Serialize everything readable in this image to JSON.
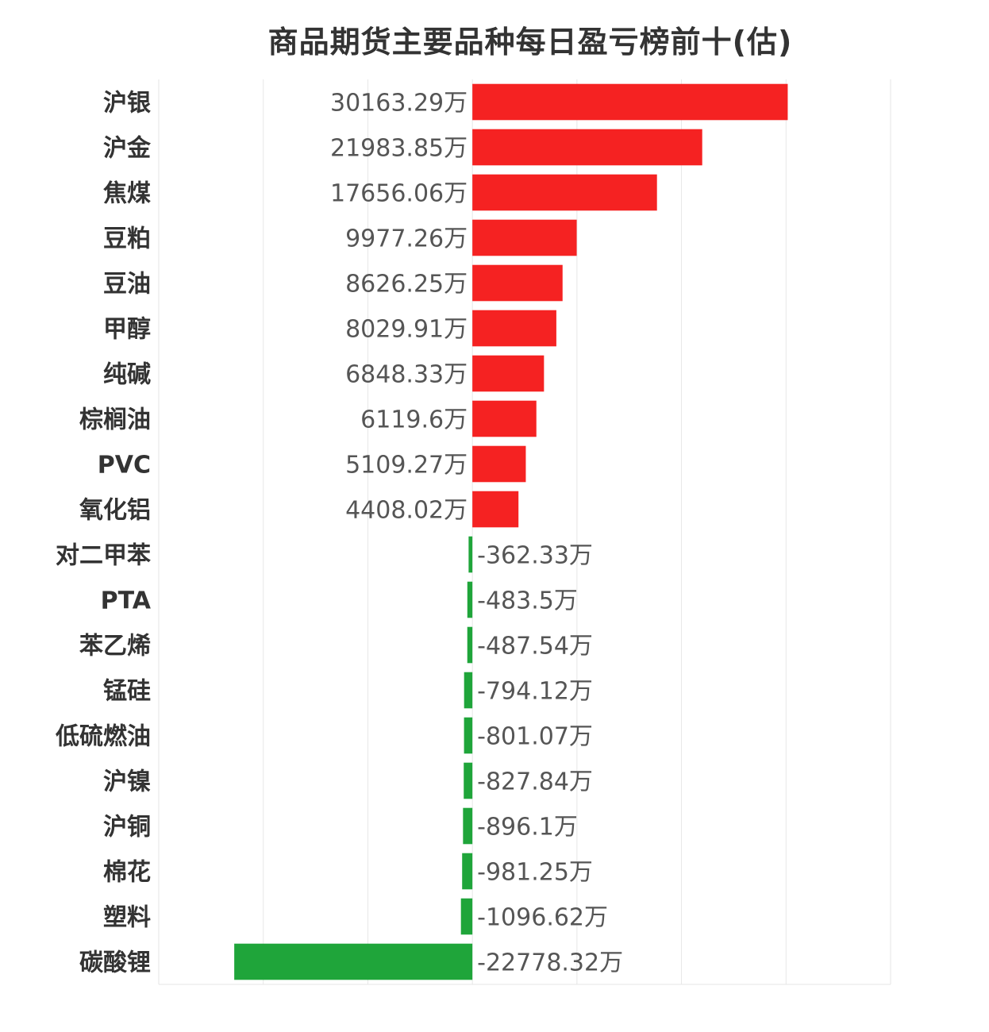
{
  "chart_data": {
    "type": "bar",
    "orientation": "horizontal",
    "title": "商品期货主要品种每日盈亏榜前十(估)",
    "unit_suffix": "万",
    "categories": [
      "沪银",
      "沪金",
      "焦煤",
      "豆粕",
      "豆油",
      "甲醇",
      "纯碱",
      "棕榈油",
      "PVC",
      "氧化铝",
      "对二甲苯",
      "PTA",
      "苯乙烯",
      "锰硅",
      "低硫燃油",
      "沪镍",
      "沪铜",
      "棉花",
      "塑料",
      "碳酸锂"
    ],
    "values": [
      30163.29,
      21983.85,
      17656.06,
      9977.26,
      8626.25,
      8029.91,
      6848.33,
      6119.6,
      5109.27,
      4408.02,
      -362.33,
      -483.5,
      -487.54,
      -794.12,
      -801.07,
      -827.84,
      -896.1,
      -981.25,
      -1096.62,
      -22778.32
    ],
    "value_labels": [
      "30163.29万",
      "21983.85万",
      "17656.06万",
      "9977.26万",
      "8626.25万",
      "8029.91万",
      "6848.33万",
      "6119.6万",
      "5109.27万",
      "4408.02万",
      "-362.33万",
      "-483.5万",
      "-487.54万",
      "-794.12万",
      "-801.07万",
      "-827.84万",
      "-896.1万",
      "-981.25万",
      "-1096.62万",
      "-22778.32万"
    ],
    "xlim": [
      -30000,
      40000
    ],
    "grid": true,
    "colors": {
      "positive": "#f52222",
      "negative": "#1fa53a",
      "grid": "#e6e6e6"
    }
  }
}
